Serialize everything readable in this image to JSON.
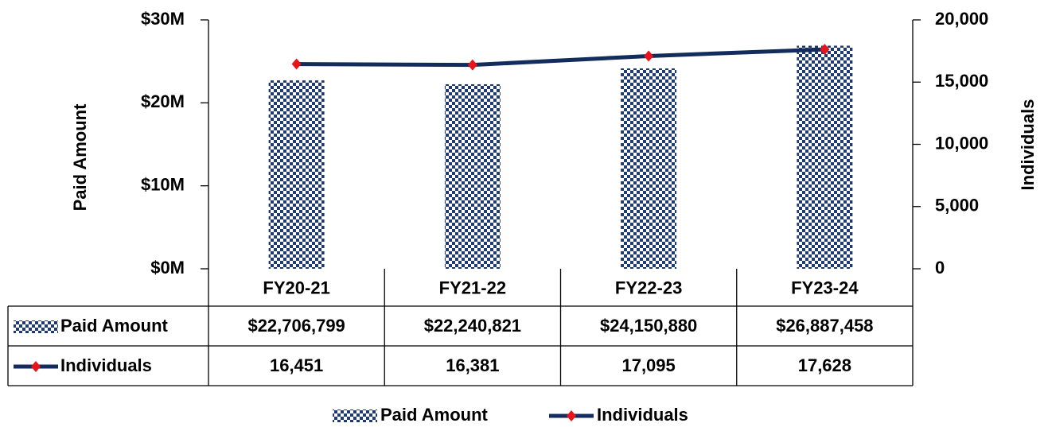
{
  "chart_data": {
    "type": "bar_line",
    "categories": [
      "FY20-21",
      "FY21-22",
      "FY22-23",
      "FY23-24"
    ],
    "series": [
      {
        "name": "Paid Amount",
        "type": "bar",
        "color": "#1f3a6e",
        "axis": "y",
        "values": [
          22706799,
          22240821,
          24150880,
          26887458
        ],
        "value_labels": [
          "$22,706,799",
          "$22,240,821",
          "$24,150,880",
          "$26,887,458"
        ]
      },
      {
        "name": "Individuals",
        "type": "line",
        "color": "#132c5e",
        "marker_color": "#e8141b",
        "axis": "y2",
        "values": [
          16451,
          16381,
          17095,
          17628
        ],
        "value_labels": [
          "16,451",
          "16,381",
          "17,095",
          "17,628"
        ]
      }
    ],
    "ylabel": "Paid Amount",
    "y2label": "Individuals",
    "ylim": [
      0,
      30000000
    ],
    "yticks": [
      {
        "value": 0,
        "label": "$0M"
      },
      {
        "value": 10000000,
        "label": "$10M"
      },
      {
        "value": 20000000,
        "label": "$20M"
      },
      {
        "value": 30000000,
        "label": "$30M"
      }
    ],
    "y2lim": [
      0,
      20000
    ],
    "y2ticks": [
      0,
      {
        "value": 5000,
        "label": "5,000"
      },
      {
        "value": 10000,
        "label": "10,000"
      },
      {
        "value": 15000,
        "label": "15,000"
      },
      {
        "value": 20000,
        "label": "20,000"
      }
    ],
    "grid": false,
    "data_table": true,
    "legend": "bottom"
  }
}
